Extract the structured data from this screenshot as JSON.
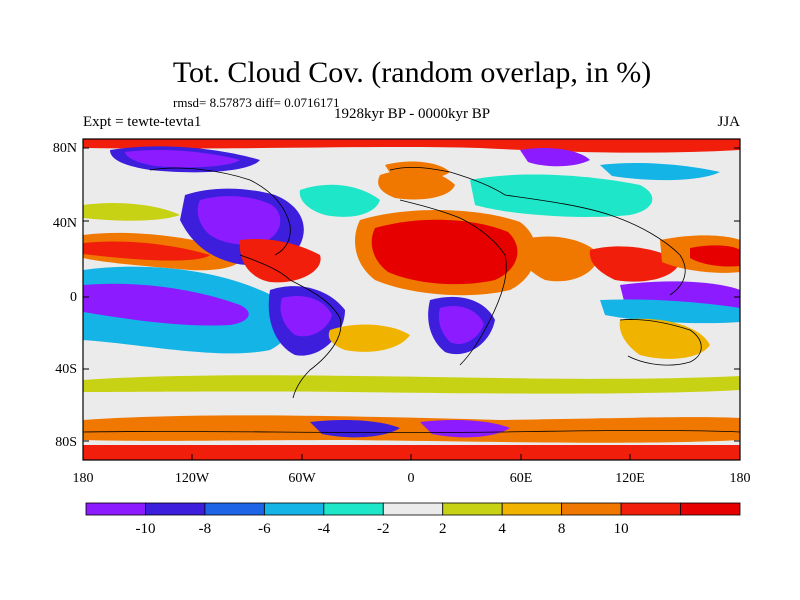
{
  "title": "Tot. Cloud Cov. (random overlap, in %)",
  "stats": "rmsd= 8.57873 diff= 0.0716171",
  "period": "1928kyr BP - 0000kyr BP",
  "experiment": "Expt = tewte-tevta1",
  "season": "JJA",
  "lon_ticks": [
    "180",
    "120W",
    "60W",
    "0",
    "60E",
    "120E",
    "180"
  ],
  "lat_ticks": [
    "80N",
    "40N",
    "0",
    "40S",
    "80S"
  ],
  "colorbar": {
    "labels": [
      "-10",
      "-8",
      "-6",
      "-4",
      "-2",
      "2",
      "4",
      "8",
      "10"
    ],
    "colors": [
      "#8c1cff",
      "#3c1edc",
      "#1e64e6",
      "#14b4e6",
      "#1ee6c8",
      "#ebebeb",
      "#c8d214",
      "#f0b400",
      "#f07800",
      "#f01e0a",
      "#e60000"
    ]
  }
}
